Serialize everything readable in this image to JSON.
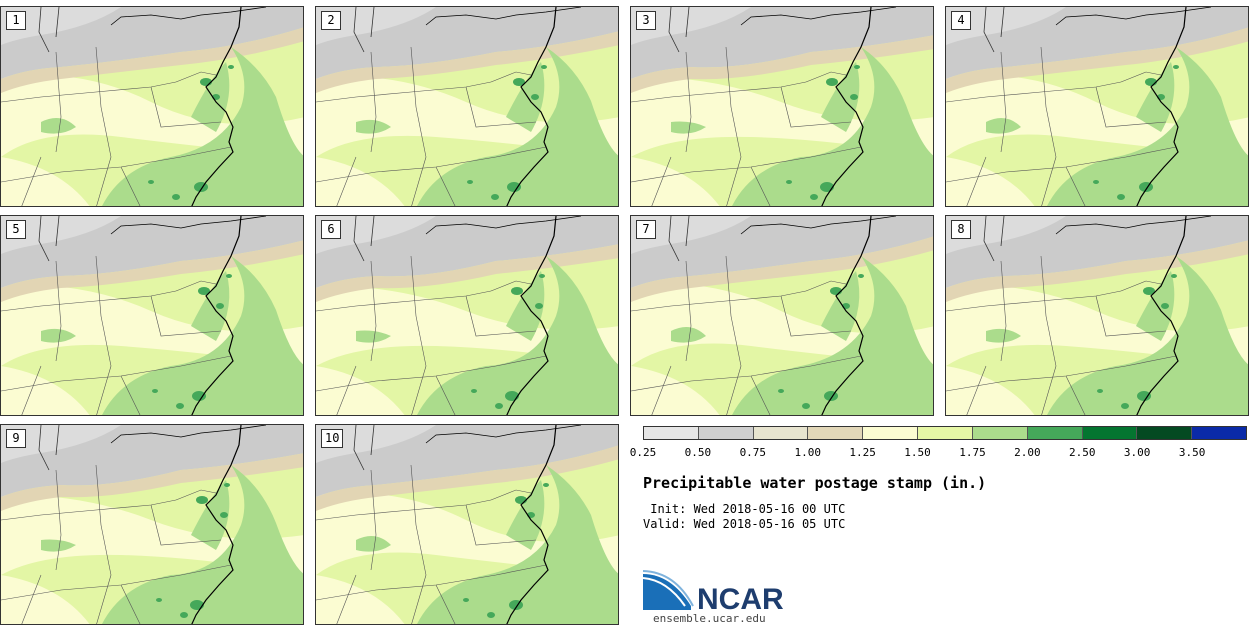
{
  "map": {
    "title": "Precipitable water postage stamp (in.)",
    "init_label": " Init: Wed 2018-05-16 00 UTC",
    "valid_label": "Valid: Wed 2018-05-16 05 UTC",
    "panels": [
      {
        "label": "1"
      },
      {
        "label": "2"
      },
      {
        "label": "3"
      },
      {
        "label": "4"
      },
      {
        "label": "5"
      },
      {
        "label": "6"
      },
      {
        "label": "7"
      },
      {
        "label": "8"
      },
      {
        "label": "9"
      },
      {
        "label": "10"
      }
    ],
    "colorbar": {
      "ticks": [
        "0.25",
        "0.50",
        "0.75",
        "1.00",
        "1.25",
        "1.50",
        "1.75",
        "2.00",
        "2.50",
        "3.00",
        "3.50"
      ],
      "colors": [
        "#e6e6e6",
        "#cfcfcf",
        "#e7e4cf",
        "#e2d7b8",
        "#fbfcd2",
        "#e6f7a6",
        "#abdc8c",
        "#45a85a",
        "#047530",
        "#044a22",
        "#0a2aa8"
      ]
    },
    "colors": {
      "pw_gray": "#cbcbcb",
      "pw_lightgray": "#dcdcdc",
      "pw_tan": "#e2d5b4",
      "pw_cream": "#fbfcd2",
      "pw_lime": "#e3f6a5",
      "pw_green": "#abdc8c",
      "pw_dark": "#45a85a",
      "coast": "#000000"
    },
    "logo": {
      "text": "NCAR",
      "url": "ensemble.ucar.edu"
    }
  }
}
